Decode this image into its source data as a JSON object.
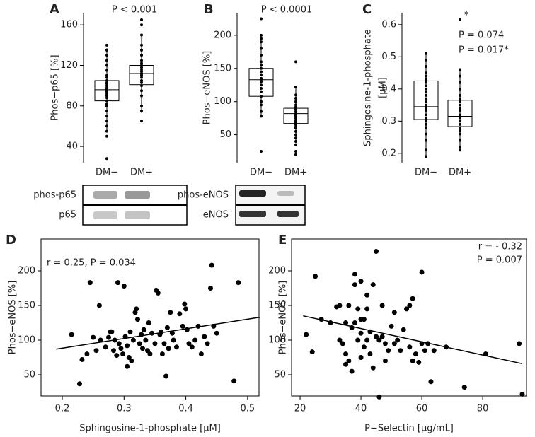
{
  "chart_data": [
    {
      "type": "box",
      "label": "A",
      "ylabel": [
        "Phos−p65 [%]"
      ],
      "annotations": [
        "P < 0.001"
      ],
      "categories": [
        "DM−",
        "DM+"
      ],
      "ylim": [
        24,
        172
      ],
      "yticks": [
        40,
        80,
        120,
        160
      ],
      "boxes": [
        {
          "q1": 85,
          "median": 96,
          "q3": 105,
          "whisker_low": 55,
          "whisker_high": 137
        },
        {
          "q1": 101,
          "median": 112,
          "q3": 120,
          "whisker_low": 73,
          "whisker_high": 150
        }
      ],
      "points": [
        [
          28,
          50,
          55,
          60,
          65,
          70,
          75,
          80,
          82,
          85,
          88,
          90,
          92,
          94,
          95,
          96,
          97,
          98,
          100,
          102,
          103,
          105,
          108,
          110,
          115,
          120,
          125,
          130,
          135,
          140
        ],
        [
          65,
          75,
          80,
          90,
          95,
          100,
          103,
          105,
          108,
          110,
          112,
          114,
          116,
          118,
          120,
          122,
          125,
          130,
          135,
          140,
          150,
          160,
          165
        ]
      ],
      "blot_labels": [
        "phos-p65",
        "p65"
      ],
      "color": "#000000"
    },
    {
      "type": "box",
      "label": "B",
      "ylabel": [
        "Phos−eNOS [%]"
      ],
      "annotations": [
        "P < 0.0001"
      ],
      "categories": [
        "DM−",
        "DM+"
      ],
      "ylim": [
        8,
        234
      ],
      "yticks": [
        50,
        100,
        150,
        200
      ],
      "boxes": [
        {
          "q1": 108,
          "median": 133,
          "q3": 150,
          "whisker_low": 78,
          "whisker_high": 200
        },
        {
          "q1": 67,
          "median": 82,
          "q3": 90,
          "whisker_low": 40,
          "whisker_high": 122
        }
      ],
      "points": [
        [
          25,
          78,
          85,
          95,
          100,
          108,
          115,
          120,
          125,
          130,
          133,
          135,
          140,
          145,
          150,
          155,
          160,
          170,
          180,
          190,
          195,
          200,
          225
        ],
        [
          20,
          25,
          35,
          40,
          45,
          50,
          55,
          60,
          62,
          65,
          68,
          70,
          72,
          75,
          78,
          80,
          82,
          85,
          88,
          90,
          92,
          95,
          100,
          105,
          110,
          122,
          160
        ]
      ],
      "blot_labels": [
        "phos-eNOS",
        "eNOS"
      ],
      "color": "#000000"
    },
    {
      "type": "box",
      "label": "C",
      "ylabel": [
        "Sphingosine-1-phosphate",
        "[μM]"
      ],
      "annotations": [
        "P = 0.074",
        "P = 0.017*",
        "*"
      ],
      "categories": [
        "DM−",
        "DM+"
      ],
      "ylim": [
        0.171,
        0.637
      ],
      "yticks": [
        0.2,
        0.3,
        0.4,
        0.5,
        0.6
      ],
      "boxes": [
        {
          "q1": 0.305,
          "median": 0.345,
          "q3": 0.425,
          "whisker_low": 0.19,
          "whisker_high": 0.51
        },
        {
          "q1": 0.283,
          "median": 0.315,
          "q3": 0.365,
          "whisker_low": 0.21,
          "whisker_high": 0.46
        }
      ],
      "points": [
        [
          0.19,
          0.21,
          0.24,
          0.26,
          0.28,
          0.29,
          0.3,
          0.31,
          0.32,
          0.33,
          0.34,
          0.35,
          0.36,
          0.37,
          0.38,
          0.39,
          0.4,
          0.41,
          0.42,
          0.43,
          0.44,
          0.45,
          0.47,
          0.49,
          0.51
        ],
        [
          0.21,
          0.22,
          0.24,
          0.26,
          0.27,
          0.28,
          0.29,
          0.3,
          0.31,
          0.32,
          0.33,
          0.34,
          0.35,
          0.36,
          0.37,
          0.38,
          0.4,
          0.42,
          0.44,
          0.46,
          0.615
        ]
      ],
      "color": "#000000"
    },
    {
      "type": "scatter",
      "label": "D",
      "ylabel": [
        "Phos−eNOS [%]"
      ],
      "xlabel": "Sphingosine-1-phosphate [μM]",
      "annotations": [
        "r = 0.25, P = 0.034"
      ],
      "xlim": [
        0.1656,
        0.5185
      ],
      "xticks": [
        0.2,
        0.3,
        0.4,
        0.5
      ],
      "ylim": [
        19.4,
        245.9
      ],
      "yticks": [
        50,
        100,
        150,
        200
      ],
      "x": [
        0.215,
        0.228,
        0.232,
        0.24,
        0.245,
        0.25,
        0.255,
        0.26,
        0.262,
        0.27,
        0.275,
        0.278,
        0.28,
        0.283,
        0.285,
        0.288,
        0.29,
        0.292,
        0.295,
        0.298,
        0.3,
        0.302,
        0.305,
        0.305,
        0.308,
        0.31,
        0.312,
        0.315,
        0.318,
        0.32,
        0.322,
        0.325,
        0.328,
        0.33,
        0.332,
        0.335,
        0.338,
        0.34,
        0.342,
        0.345,
        0.35,
        0.352,
        0.355,
        0.358,
        0.36,
        0.362,
        0.365,
        0.368,
        0.37,
        0.372,
        0.375,
        0.378,
        0.38,
        0.385,
        0.39,
        0.395,
        0.398,
        0.4,
        0.402,
        0.405,
        0.41,
        0.415,
        0.42,
        0.425,
        0.43,
        0.435,
        0.44,
        0.442,
        0.445,
        0.45,
        0.478,
        0.485
      ],
      "values": [
        108,
        37,
        72,
        80,
        183,
        104,
        85,
        150,
        100,
        90,
        104,
        112,
        112,
        85,
        100,
        78,
        183,
        95,
        88,
        80,
        178,
        105,
        92,
        62,
        75,
        112,
        70,
        100,
        140,
        145,
        130,
        95,
        108,
        88,
        115,
        100,
        85,
        125,
        80,
        110,
        95,
        172,
        168,
        108,
        112,
        80,
        95,
        48,
        118,
        88,
        140,
        110,
        100,
        90,
        138,
        120,
        152,
        145,
        115,
        95,
        90,
        100,
        120,
        80,
        105,
        95,
        175,
        208,
        120,
        110,
        41,
        183
      ],
      "trend": {
        "x": [
          0.19,
          0.52
        ],
        "y": [
          87,
          133
        ]
      },
      "color": "#000000"
    },
    {
      "type": "scatter",
      "label": "E",
      "ylabel": [
        "Phos−eNOS [%]"
      ],
      "xlabel": "P−Selectin [μg/mL]",
      "annotations": [
        "r = - 0.32",
        "P = 0.007"
      ],
      "xlim": [
        17.2,
        94.4
      ],
      "xticks": [
        20,
        40,
        60,
        80
      ],
      "ylim": [
        19.4,
        245.9
      ],
      "yticks": [
        50,
        100,
        150,
        200
      ],
      "x": [
        22,
        24,
        25,
        27,
        30,
        32,
        33,
        33,
        34,
        35,
        35,
        35,
        36,
        36,
        37,
        37,
        38,
        38,
        38,
        39,
        39,
        40,
        40,
        40,
        40,
        41,
        41,
        42,
        42,
        42,
        43,
        43,
        44,
        44,
        45,
        45,
        46,
        46,
        47,
        47,
        48,
        48,
        49,
        50,
        51,
        51,
        52,
        53,
        54,
        55,
        56,
        56,
        57,
        57,
        58,
        59,
        60,
        60,
        61,
        62,
        63,
        64,
        68,
        74,
        81,
        92,
        93
      ],
      "values": [
        108,
        83,
        192,
        130,
        125,
        148,
        150,
        100,
        95,
        125,
        80,
        65,
        150,
        70,
        118,
        55,
        195,
        180,
        125,
        145,
        100,
        185,
        130,
        110,
        75,
        130,
        90,
        165,
        145,
        100,
        112,
        80,
        180,
        60,
        228,
        105,
        18,
        100,
        150,
        105,
        95,
        70,
        85,
        120,
        140,
        95,
        100,
        85,
        115,
        145,
        150,
        90,
        160,
        70,
        80,
        68,
        198,
        95,
        85,
        95,
        40,
        85,
        90,
        32,
        80,
        95,
        22
      ],
      "trend": {
        "x": [
          21,
          93
        ],
        "y": [
          135,
          66
        ]
      },
      "color": "#000000"
    }
  ]
}
